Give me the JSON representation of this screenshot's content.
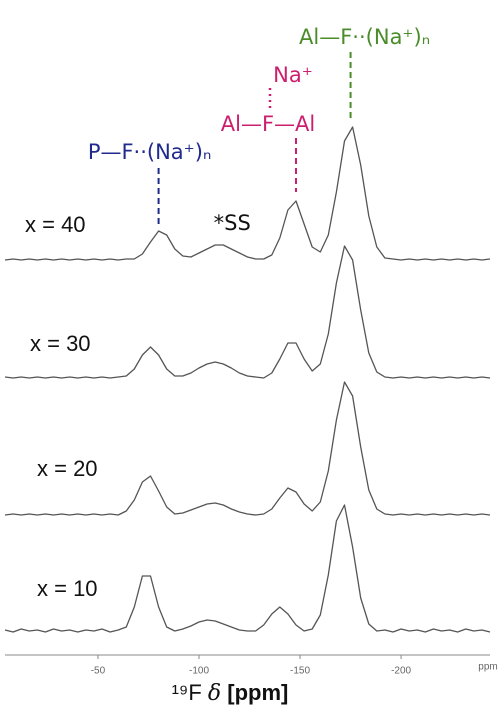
{
  "chart_data": {
    "type": "line",
    "x": [
      -4,
      -8,
      -12,
      -16,
      -20,
      -24,
      -28,
      -32,
      -36,
      -40,
      -44,
      -48,
      -52,
      -56,
      -60,
      -64,
      -68,
      -72,
      -76,
      -80,
      -84,
      -88,
      -92,
      -96,
      -100,
      -104,
      -108,
      -112,
      -116,
      -120,
      -124,
      -128,
      -132,
      -136,
      -140,
      -144,
      -148,
      -152,
      -156,
      -160,
      -164,
      -168,
      -172,
      -176,
      -180,
      -184,
      -188,
      -192,
      -196,
      -200,
      -204,
      -208,
      -212,
      -216,
      -220,
      -224,
      -228,
      -232,
      -236,
      -240,
      -244
    ],
    "series": [
      {
        "name": "x = 40",
        "color": "#555555",
        "values": [
          0,
          1,
          0,
          1,
          0,
          1,
          0,
          1,
          0,
          1,
          0,
          1,
          0,
          1,
          0,
          1,
          1,
          6,
          18,
          29,
          25,
          11,
          4,
          3,
          7,
          11,
          15,
          15,
          11,
          7,
          3,
          1,
          1,
          5,
          22,
          50,
          59,
          36,
          13,
          8,
          25,
          68,
          119,
          133,
          95,
          44,
          13,
          2,
          1,
          0,
          1,
          0,
          1,
          0,
          1,
          0,
          1,
          0,
          1,
          0,
          1
        ]
      },
      {
        "name": "x = 30",
        "color": "#555555",
        "values": [
          1,
          0,
          1,
          0,
          1,
          0,
          1,
          0,
          1,
          0,
          1,
          0,
          1,
          0,
          1,
          2,
          9,
          23,
          31,
          23,
          9,
          2,
          2,
          5,
          10,
          14,
          16,
          14,
          10,
          5,
          2,
          1,
          0,
          5,
          19,
          35,
          35,
          19,
          7,
          14,
          44,
          95,
          132,
          118,
          68,
          25,
          6,
          1,
          0,
          1,
          0,
          1,
          0,
          1,
          0,
          1,
          0,
          1,
          0,
          1,
          0
        ]
      },
      {
        "name": "x = 20",
        "color": "#555555",
        "values": [
          0,
          1,
          0,
          1,
          0,
          1,
          0,
          1,
          0,
          1,
          0,
          1,
          0,
          1,
          0,
          4,
          15,
          33,
          39,
          24,
          8,
          1,
          2,
          5,
          8,
          11,
          12,
          10,
          6,
          3,
          1,
          0,
          1,
          6,
          17,
          27,
          23,
          11,
          4,
          13,
          44,
          95,
          133,
          119,
          68,
          25,
          6,
          1,
          0,
          1,
          0,
          1,
          0,
          1,
          0,
          1,
          0,
          1,
          0,
          1,
          0
        ]
      },
      {
        "name": "x = 10",
        "color": "#555555",
        "values": [
          2,
          0,
          3,
          1,
          2,
          0,
          3,
          1,
          2,
          0,
          2,
          1,
          3,
          0,
          2,
          5,
          25,
          56,
          56,
          25,
          5,
          1,
          3,
          6,
          10,
          12,
          11,
          8,
          5,
          2,
          1,
          1,
          7,
          18,
          25,
          18,
          7,
          1,
          3,
          17,
          57,
          111,
          127,
          85,
          34,
          8,
          1,
          2,
          0,
          3,
          1,
          2,
          0,
          3,
          1,
          2,
          0,
          3,
          1,
          2,
          0
        ]
      }
    ],
    "xlim": [
      -4,
      -244
    ],
    "xticks": [
      -50,
      -100,
      -150,
      -200
    ],
    "x_unit": "ppm",
    "xlabel": {
      "nucleus": "¹⁹F ",
      "symbol": "δ",
      "unit": " [ppm]"
    },
    "annotations": [
      {
        "text": "P—F··(Na⁺)ₙ",
        "x": -80,
        "color": "#1f2a8c"
      },
      {
        "text": "Al—F—Al",
        "above": "Na⁺",
        "x": -148,
        "color": "#cc1e6e"
      },
      {
        "text": "Al—F··(Na⁺)ₙ",
        "x": -175,
        "color": "#4a8c2a"
      },
      {
        "text": "*SS",
        "x": -110,
        "color": "#111111"
      }
    ]
  }
}
